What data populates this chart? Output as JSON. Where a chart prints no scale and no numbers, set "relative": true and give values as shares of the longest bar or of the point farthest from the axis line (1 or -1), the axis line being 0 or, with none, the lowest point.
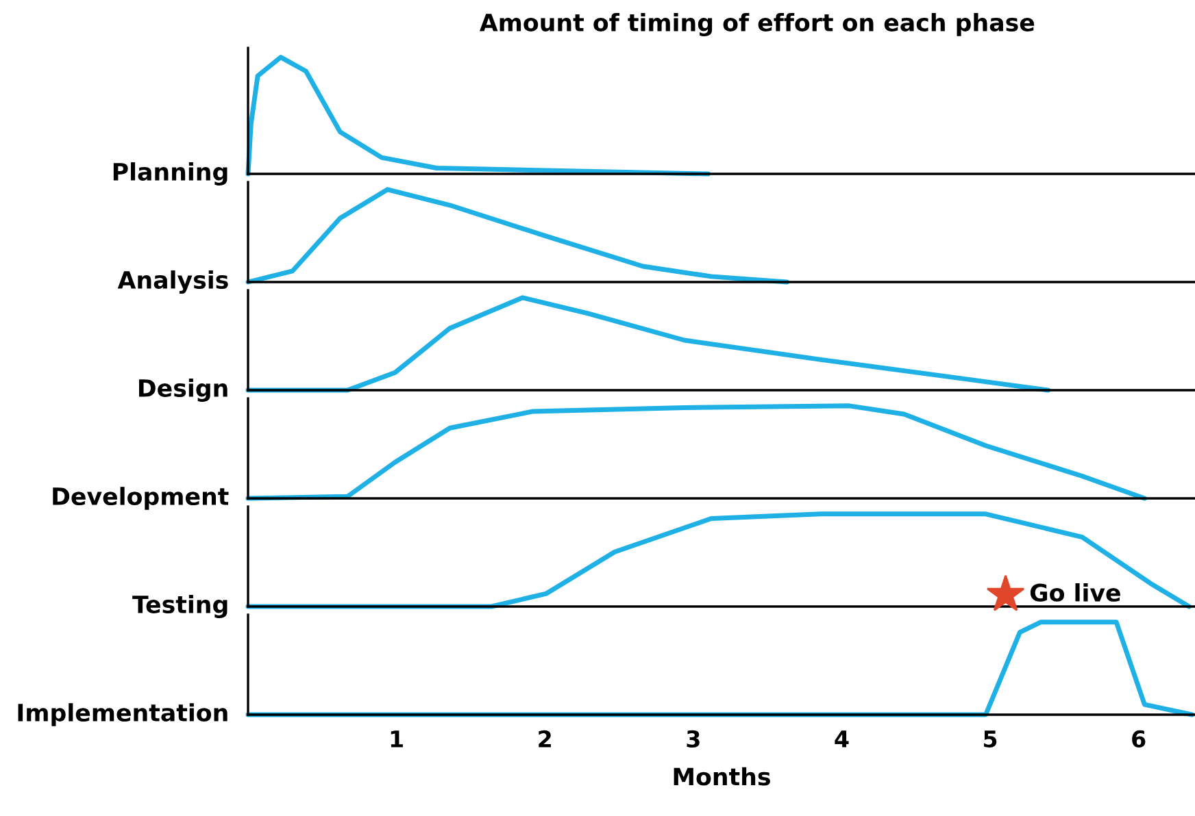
{
  "chart_data": [
    {
      "type": "line",
      "relative": true,
      "title": "Amount of timing of effort on each phase",
      "ylabel": "Planning",
      "x": [
        0,
        0.02,
        0.065,
        0.22,
        0.39,
        0.62,
        0.9,
        1.27,
        2.0,
        3.1
      ],
      "values": [
        0,
        0.43,
        0.84,
        1,
        0.88,
        0.36,
        0.14,
        0.05,
        0.03,
        0
      ],
      "color": "#1fb0e6",
      "xlim": [
        0,
        6.38
      ],
      "xticks": [
        1,
        2,
        3,
        4,
        5,
        6
      ],
      "tick_labels": false,
      "grid": false,
      "legend": false
    },
    {
      "type": "line",
      "relative": true,
      "ylabel": "Analysis",
      "x": [
        0,
        0.3,
        0.62,
        0.94,
        1.36,
        2.0,
        2.66,
        3.12,
        3.63
      ],
      "values": [
        0,
        0.12,
        0.69,
        1,
        0.83,
        0.5,
        0.17,
        0.06,
        0
      ],
      "color": "#1fb0e6",
      "xlim": [
        0,
        6.38
      ],
      "xticks": [
        1,
        2,
        3,
        4,
        5,
        6
      ],
      "tick_labels": false,
      "grid": false,
      "legend": false
    },
    {
      "type": "line",
      "relative": true,
      "ylabel": "Design",
      "x": [
        0,
        0.67,
        0.99,
        1.36,
        1.85,
        2.29,
        2.94,
        3.86,
        4.79,
        5.39
      ],
      "values": [
        0,
        0,
        0.19,
        0.67,
        1,
        0.83,
        0.54,
        0.33,
        0.13,
        0
      ],
      "color": "#1fb0e6",
      "xlim": [
        0,
        6.38
      ],
      "xticks": [
        1,
        2,
        3,
        4,
        5,
        6
      ],
      "tick_labels": false,
      "grid": false,
      "legend": false
    },
    {
      "type": "line",
      "relative": true,
      "ylabel": "Development",
      "x": [
        0,
        0.67,
        0.99,
        1.36,
        1.92,
        2.94,
        4.05,
        4.42,
        4.97,
        5.62,
        6.04
      ],
      "values": [
        0,
        0.02,
        0.39,
        0.76,
        0.94,
        0.98,
        1,
        0.91,
        0.57,
        0.24,
        0
      ],
      "color": "#1fb0e6",
      "xlim": [
        0,
        6.38
      ],
      "xticks": [
        1,
        2,
        3,
        4,
        5,
        6
      ],
      "tick_labels": false,
      "grid": false,
      "legend": false
    },
    {
      "type": "line",
      "relative": true,
      "ylabel": "Testing",
      "x": [
        0,
        1.64,
        2.01,
        2.47,
        3.12,
        3.86,
        4.97,
        5.62,
        6.08,
        6.34
      ],
      "values": [
        0,
        0,
        0.14,
        0.59,
        0.95,
        1,
        1,
        0.75,
        0.25,
        0
      ],
      "color": "#1fb0e6",
      "xlim": [
        0,
        6.38
      ],
      "xticks": [
        1,
        2,
        3,
        4,
        5,
        6
      ],
      "tick_labels": false,
      "grid": false,
      "legend": false
    },
    {
      "type": "line",
      "relative": true,
      "ylabel": "Implementation",
      "xlabel": "Months",
      "annotations": [
        "Go live"
      ],
      "x": [
        0,
        4.97,
        5.2,
        5.34,
        5.85,
        6.04,
        6.36
      ],
      "values": [
        0,
        0,
        0.89,
        1,
        1,
        0.11,
        0
      ],
      "color": "#1fb0e6",
      "xlim": [
        0,
        6.38
      ],
      "xticks": [
        1,
        2,
        3,
        4,
        5,
        6
      ],
      "tick_labels": "x",
      "grid": false,
      "legend": false
    }
  ]
}
